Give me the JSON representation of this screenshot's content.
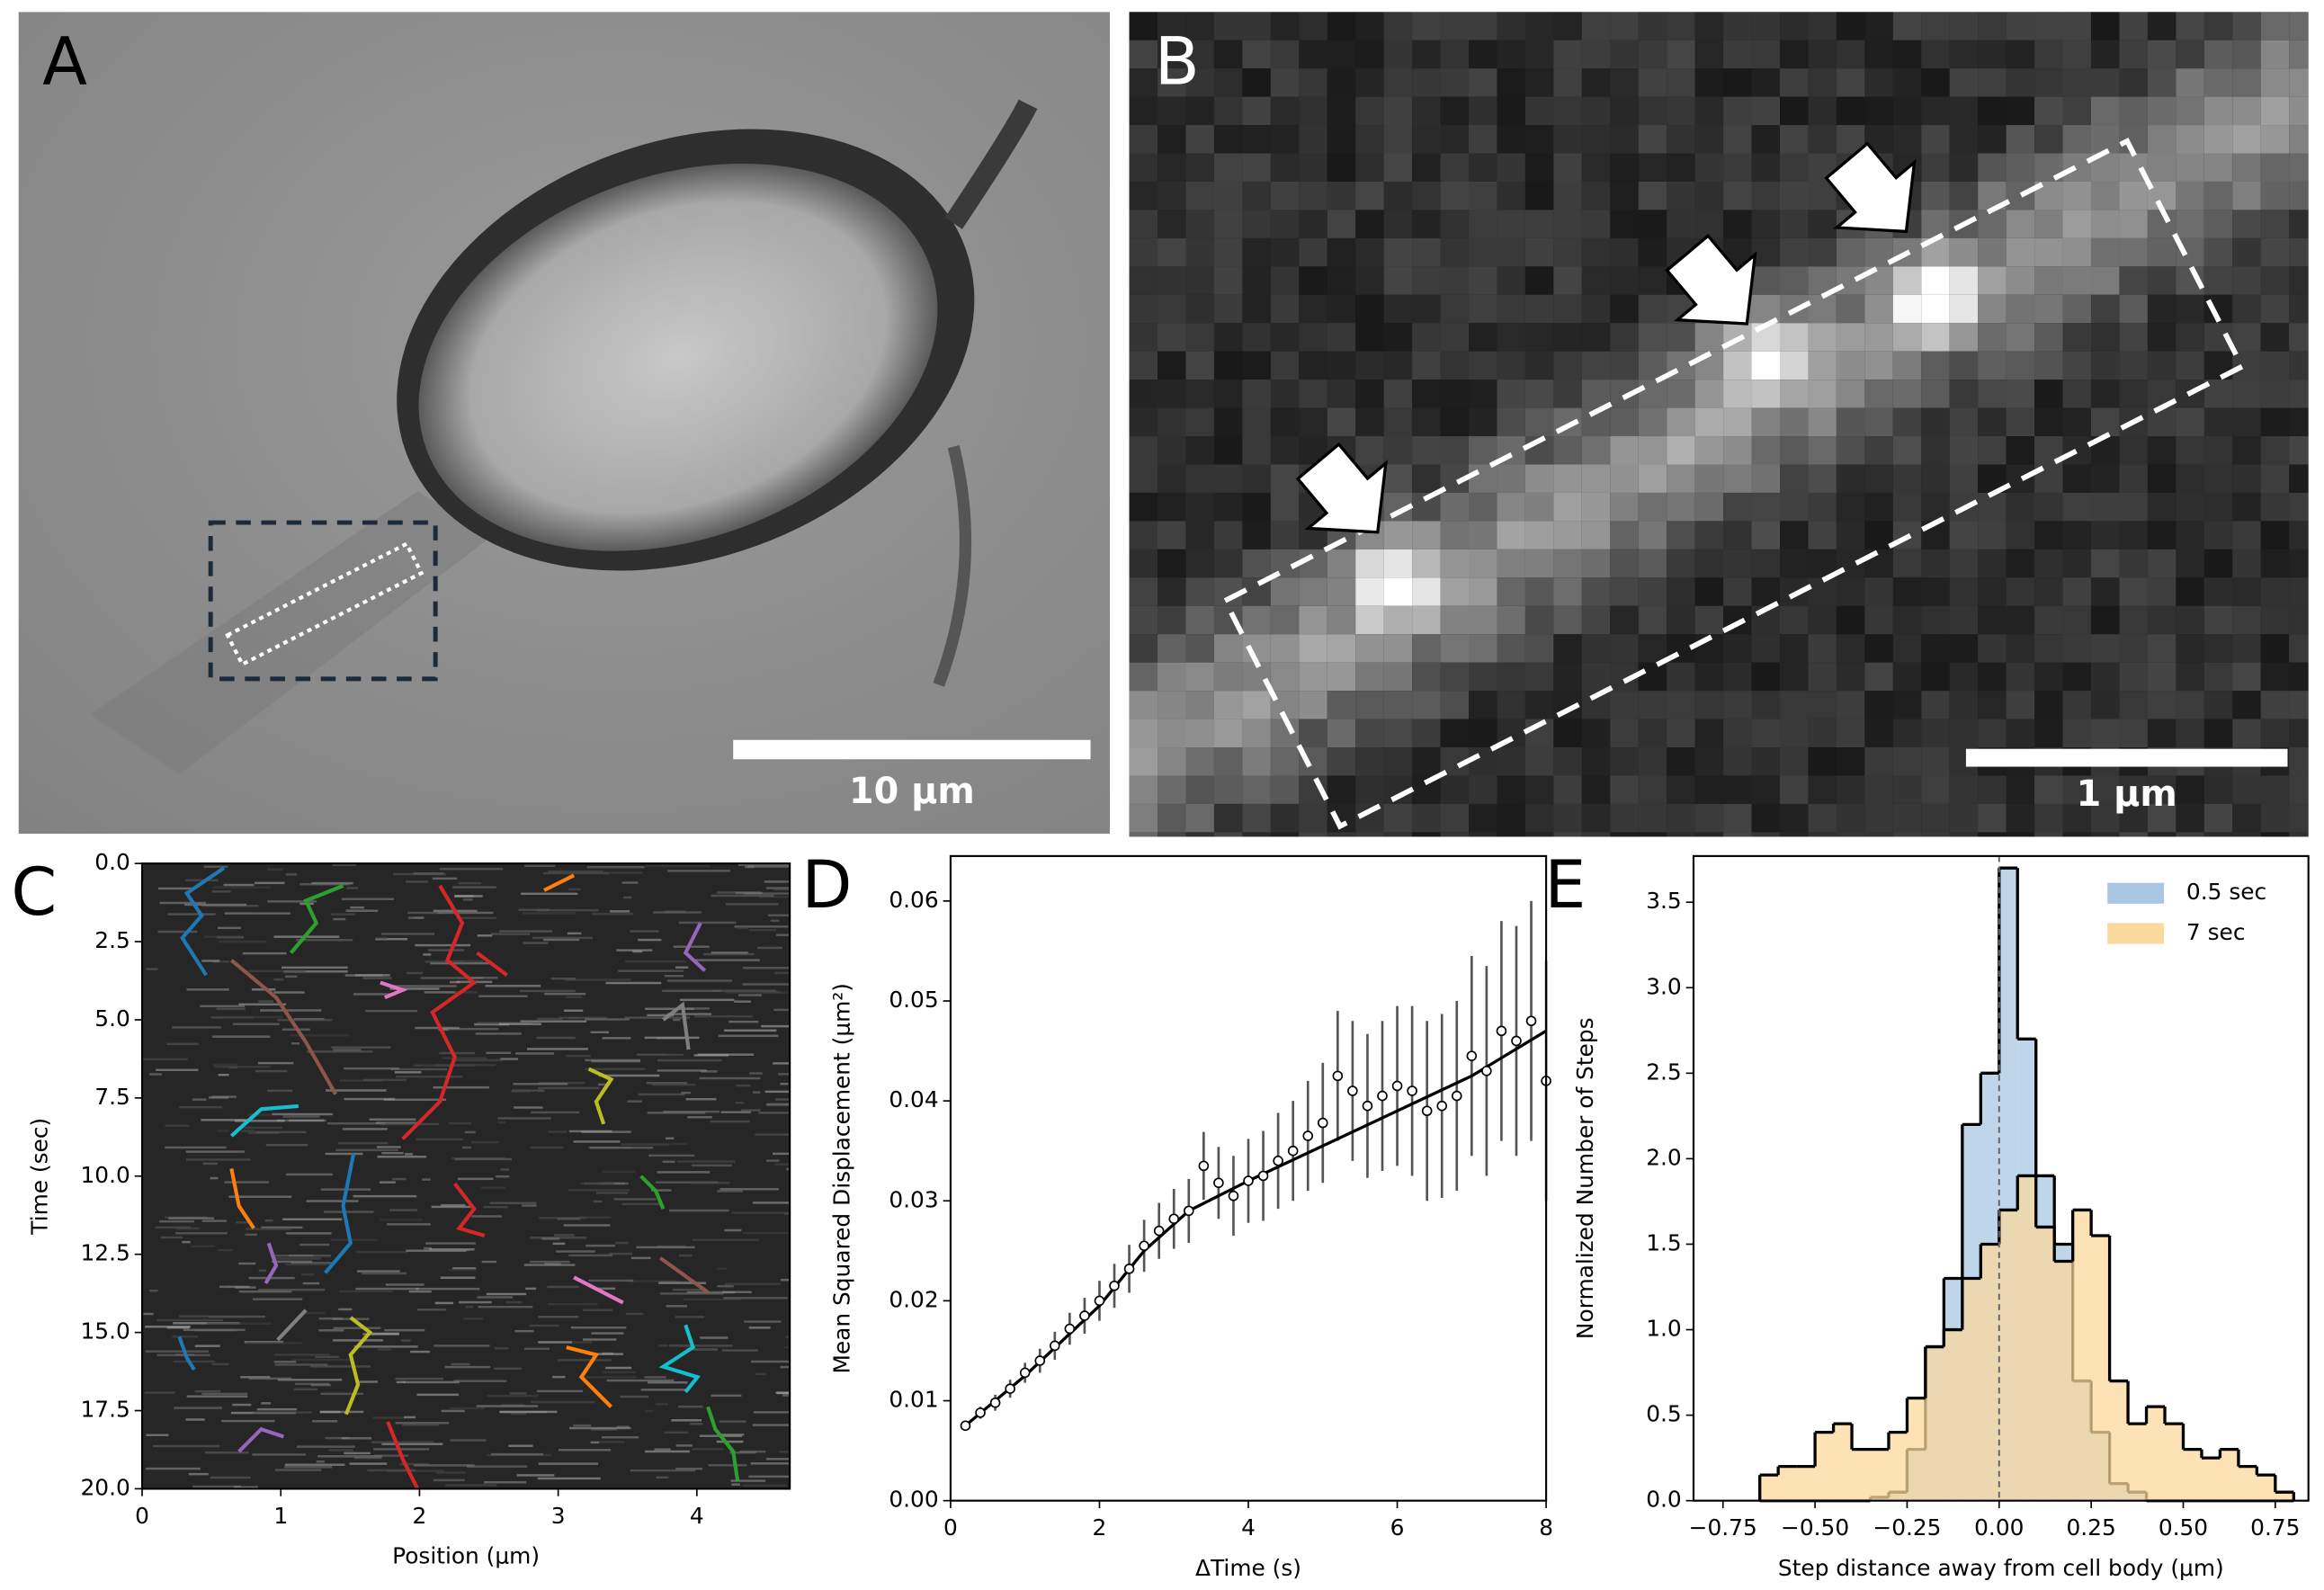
{
  "panels": {
    "A": {
      "label": "A",
      "scale_bar": "10 µm"
    },
    "B": {
      "label": "B",
      "scale_bar": "1 µm"
    }
  },
  "chart_data": [
    {
      "type": "kymograph",
      "panel_label": "C",
      "x_label": "Position (μm)",
      "y_label": "Time (sec)",
      "xlim": [
        0,
        4.67
      ],
      "ylim": [
        20,
        0
      ],
      "xticks": [
        0,
        1,
        2,
        3,
        4
      ],
      "yticks": [
        {
          "value": 0,
          "label": "0.0"
        },
        {
          "value": 2.5,
          "label": "2.5"
        },
        {
          "value": 5,
          "label": "5.0"
        },
        {
          "value": 7.5,
          "label": "7.5"
        },
        {
          "value": 10,
          "label": "10.0"
        },
        {
          "value": 12.5,
          "label": "12.5"
        },
        {
          "value": 15,
          "label": "15.0"
        },
        {
          "value": 17.5,
          "label": "17.5"
        },
        {
          "value": 20,
          "label": "20.0"
        }
      ]
    },
    {
      "type": "errorbar",
      "panel_label": "D",
      "x_label": "ΔTime (s)",
      "y_label": "Mean Squared Displacement (μm²)",
      "xlim": [
        0,
        8
      ],
      "ylim": [
        0,
        0.0645
      ],
      "xticks": [
        0,
        2,
        4,
        6,
        8
      ],
      "yticks": [
        {
          "value": 0,
          "label": "0.00"
        },
        {
          "value": 0.01,
          "label": "0.01"
        },
        {
          "value": 0.02,
          "label": "0.02"
        },
        {
          "value": 0.03,
          "label": "0.03"
        },
        {
          "value": 0.04,
          "label": "0.04"
        },
        {
          "value": 0.05,
          "label": "0.05"
        },
        {
          "value": 0.06,
          "label": "0.06"
        }
      ],
      "color": "#000000",
      "x": [
        0.2,
        0.4,
        0.6,
        0.8,
        1.0,
        1.2,
        1.4,
        1.6,
        1.8,
        2.0,
        2.2,
        2.4,
        2.6,
        2.8,
        3.0,
        3.2,
        3.4,
        3.6,
        3.8,
        4.0,
        4.2,
        4.4,
        4.6,
        4.8,
        5.0,
        5.2,
        5.4,
        5.6,
        5.8,
        6.0,
        6.2,
        6.4,
        6.6,
        6.8,
        7.0,
        7.2,
        7.4,
        7.6,
        7.8,
        8.0
      ],
      "values": [
        0.0075,
        0.0088,
        0.0098,
        0.0112,
        0.0128,
        0.014,
        0.0155,
        0.0172,
        0.0185,
        0.02,
        0.0215,
        0.0232,
        0.0255,
        0.027,
        0.0282,
        0.029,
        0.0335,
        0.0318,
        0.0305,
        0.032,
        0.0325,
        0.034,
        0.035,
        0.0365,
        0.0378,
        0.0425,
        0.041,
        0.0395,
        0.0405,
        0.0415,
        0.041,
        0.039,
        0.0395,
        0.0405,
        0.0445,
        0.043,
        0.047,
        0.046,
        0.048,
        0.042
      ],
      "errors": [
        0.0005,
        0.0006,
        0.0008,
        0.0009,
        0.001,
        0.0012,
        0.0014,
        0.0016,
        0.0018,
        0.002,
        0.0022,
        0.0024,
        0.0026,
        0.0028,
        0.003,
        0.0032,
        0.0034,
        0.0036,
        0.004,
        0.0042,
        0.0045,
        0.0048,
        0.005,
        0.0055,
        0.006,
        0.0065,
        0.007,
        0.0072,
        0.0075,
        0.008,
        0.0085,
        0.009,
        0.0092,
        0.0095,
        0.01,
        0.0105,
        0.011,
        0.0115,
        0.012,
        0.012
      ],
      "fit_x": [
        0.15,
        1.0,
        2.0,
        2.6,
        3.2,
        4.0,
        5.0,
        6.0,
        7.0,
        8.0
      ],
      "fit_values": [
        0.0072,
        0.0125,
        0.0195,
        0.025,
        0.029,
        0.032,
        0.0355,
        0.039,
        0.0425,
        0.047
      ]
    },
    {
      "type": "histogram",
      "panel_label": "E",
      "x_label": "Step distance away from cell body (μm)",
      "y_label": "Normalized Number of Steps",
      "xlim": [
        -0.83,
        0.84
      ],
      "ylim": [
        0,
        3.77
      ],
      "xticks": [
        {
          "value": -0.75,
          "label": "−0.75"
        },
        {
          "value": -0.5,
          "label": "−0.50"
        },
        {
          "value": -0.25,
          "label": "−0.25"
        },
        {
          "value": 0,
          "label": "0.00"
        },
        {
          "value": 0.25,
          "label": "0.25"
        },
        {
          "value": 0.5,
          "label": "0.50"
        },
        {
          "value": 0.75,
          "label": "0.75"
        }
      ],
      "yticks": [
        {
          "value": 0,
          "label": "0.0"
        },
        {
          "value": 0.5,
          "label": "0.5"
        },
        {
          "value": 1,
          "label": "1.0"
        },
        {
          "value": 1.5,
          "label": "1.5"
        },
        {
          "value": 2,
          "label": "2.0"
        },
        {
          "value": 2.5,
          "label": "2.5"
        },
        {
          "value": 3,
          "label": "3.0"
        },
        {
          "value": 3.5,
          "label": "3.5"
        }
      ],
      "legend": "upper right",
      "bins": [
        -0.65,
        -0.6,
        -0.55,
        -0.5,
        -0.45,
        -0.4,
        -0.35,
        -0.3,
        -0.25,
        -0.2,
        -0.15,
        -0.1,
        -0.05,
        0,
        0.05,
        0.1,
        0.15,
        0.2,
        0.25,
        0.3,
        0.35,
        0.4,
        0.45,
        0.5,
        0.55,
        0.6,
        0.65,
        0.7,
        0.75,
        0.8
      ],
      "series": [
        {
          "name": "0.5 sec",
          "color": "#a9c7e2",
          "values": [
            0,
            0,
            0,
            0,
            0,
            0,
            0.02,
            0.05,
            0.3,
            0.9,
            1.3,
            2.2,
            2.5,
            3.7,
            2.7,
            1.9,
            1.5,
            0.7,
            0.4,
            0.1,
            0.05,
            0,
            0,
            0,
            0,
            0,
            0,
            0,
            0
          ]
        },
        {
          "name": "7 sec",
          "color": "#fbd89c",
          "values": [
            0.15,
            0.2,
            0.2,
            0.4,
            0.45,
            0.3,
            0.3,
            0.4,
            0.6,
            0.9,
            1.0,
            1.3,
            1.5,
            1.7,
            1.9,
            1.6,
            1.4,
            1.7,
            1.55,
            0.7,
            0.45,
            0.55,
            0.45,
            0.3,
            0.25,
            0.3,
            0.2,
            0.15,
            0.05
          ]
        }
      ]
    }
  ]
}
